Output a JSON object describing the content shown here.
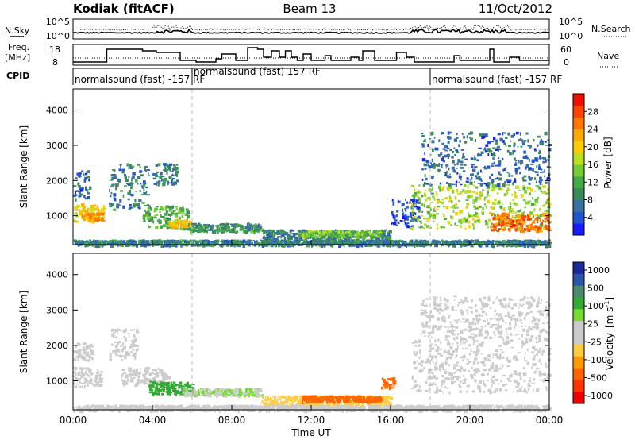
{
  "header": {
    "station": "Kodiak (fitACF)",
    "beam": "Beam 13",
    "date": "11/Oct/2012"
  },
  "chart_data": [
    {
      "type": "line",
      "name": "noise",
      "left_label": "N.Sky",
      "right_label": "N.Search",
      "y_ticks_left": [
        "10^5",
        "10^0"
      ],
      "y_ticks_right": [
        "10^5",
        "10^0"
      ]
    },
    {
      "type": "line",
      "name": "frequency",
      "left_label": "Freq.",
      "left_unit": "[MHz]",
      "right_label": "Nave",
      "y_ticks_left": [
        "18",
        "8"
      ],
      "y_ticks_right": [
        "60",
        "0"
      ],
      "freq_steps": [
        {
          "t": 0.0,
          "f": 8
        },
        {
          "t": 1.7,
          "f": 16
        },
        {
          "t": 3.5,
          "f": 15
        },
        {
          "t": 4.2,
          "f": 14
        },
        {
          "t": 5.4,
          "f": 9
        },
        {
          "t": 6.2,
          "f": 8
        },
        {
          "t": 7.2,
          "f": 10
        },
        {
          "t": 7.5,
          "f": 13
        },
        {
          "t": 8.2,
          "f": 9
        },
        {
          "t": 8.8,
          "f": 17
        },
        {
          "t": 9.3,
          "f": 16
        },
        {
          "t": 9.6,
          "f": 11
        },
        {
          "t": 10.0,
          "f": 15
        },
        {
          "t": 10.4,
          "f": 11
        },
        {
          "t": 10.7,
          "f": 15
        },
        {
          "t": 11.0,
          "f": 11
        },
        {
          "t": 11.3,
          "f": 9
        },
        {
          "t": 11.6,
          "f": 13
        },
        {
          "t": 12.0,
          "f": 9
        },
        {
          "t": 12.7,
          "f": 12
        },
        {
          "t": 13.0,
          "f": 9
        },
        {
          "t": 14.0,
          "f": 11
        },
        {
          "t": 14.4,
          "f": 9
        },
        {
          "t": 14.6,
          "f": 15
        },
        {
          "t": 15.2,
          "f": 9
        },
        {
          "t": 16.3,
          "f": 14
        },
        {
          "t": 16.8,
          "f": 11
        },
        {
          "t": 17.2,
          "f": 8
        },
        {
          "t": 19.2,
          "f": 12
        },
        {
          "t": 19.5,
          "f": 9
        },
        {
          "t": 21.0,
          "f": 16
        },
        {
          "t": 21.2,
          "f": 8
        },
        {
          "t": 22.0,
          "f": 11
        },
        {
          "t": 22.5,
          "f": 9
        },
        {
          "t": 24.0,
          "f": 9
        }
      ]
    },
    {
      "type": "table",
      "name": "cpid",
      "label": "CPID",
      "segments": [
        {
          "start": 0.0,
          "end": 6.0,
          "text": "normalsound (fast) -157 RF"
        },
        {
          "start": 6.0,
          "end": 18.0,
          "text": "normalsound (fast) 157 RF"
        },
        {
          "start": 18.0,
          "end": 24.0,
          "text": "normalsound (fast) -157 RF"
        }
      ]
    },
    {
      "type": "heatmap",
      "name": "power",
      "ylabel": "Slant Range [km]",
      "ylim": [
        180,
        4600
      ],
      "y_ticks": [
        1000,
        2000,
        3000,
        4000
      ],
      "colorbar": {
        "label": "Power [dB]",
        "ticks": [
          4,
          8,
          12,
          16,
          20,
          24,
          28
        ],
        "range": [
          0,
          32
        ],
        "colors": [
          "#1a1aff",
          "#2255cc",
          "#3a6fa0",
          "#3a8a5a",
          "#44aa44",
          "#77cc33",
          "#bbdd22",
          "#ffcc00",
          "#ffaa00",
          "#ff7700",
          "#ff4400",
          "#ee1100"
        ]
      },
      "regions": [
        {
          "t0": 0.0,
          "t1": 1.6,
          "r0": 850,
          "r1": 1350,
          "value": 20
        },
        {
          "t0": 0.4,
          "t1": 1.4,
          "r0": 900,
          "r1": 1100,
          "value": 24
        },
        {
          "t0": 0.0,
          "t1": 0.8,
          "r0": 1500,
          "r1": 2300,
          "value": 6
        },
        {
          "t0": 1.8,
          "t1": 3.8,
          "r0": 1200,
          "r1": 2500,
          "value": 8
        },
        {
          "t0": 3.5,
          "t1": 5.8,
          "r0": 650,
          "r1": 1300,
          "value": 12
        },
        {
          "t0": 4.8,
          "t1": 6.0,
          "r0": 700,
          "r1": 900,
          "value": 20
        },
        {
          "t0": 4.0,
          "t1": 5.2,
          "r0": 1900,
          "r1": 2500,
          "value": 8
        },
        {
          "t0": 5.8,
          "t1": 9.5,
          "r0": 560,
          "r1": 800,
          "value": 10
        },
        {
          "t0": 9.5,
          "t1": 16.0,
          "r0": 300,
          "r1": 620,
          "value": 8
        },
        {
          "t0": 11.5,
          "t1": 15.5,
          "r0": 420,
          "r1": 600,
          "value": 14
        },
        {
          "t0": 16.0,
          "t1": 17.5,
          "r0": 700,
          "r1": 1500,
          "value": 4
        },
        {
          "t0": 17.0,
          "t1": 24.0,
          "r0": 650,
          "r1": 1900,
          "value": 16
        },
        {
          "t0": 21.0,
          "t1": 24.0,
          "r0": 600,
          "r1": 1100,
          "value": 26
        },
        {
          "t0": 17.5,
          "t1": 24.0,
          "r0": 1900,
          "r1": 3400,
          "value": 6
        },
        {
          "t0": 0.0,
          "t1": 24.0,
          "r0": 180,
          "r1": 330,
          "value": 8
        }
      ]
    },
    {
      "type": "heatmap",
      "name": "velocity",
      "xlabel": "Time UT",
      "ylabel": "Slant Range [km]",
      "ylim": [
        180,
        4600
      ],
      "y_ticks": [
        1000,
        2000,
        3000,
        4000
      ],
      "x_ticks": [
        "00:00",
        "04:00",
        "08:00",
        "12:00",
        "16:00",
        "20:00",
        "00:00"
      ],
      "colorbar": {
        "label": "Velocity",
        "unit": "[m s",
        "unit_exp": "-1",
        "unit_end": "]",
        "ticks": [
          "1000",
          "500",
          "100",
          "25",
          "-25",
          "-100",
          "-500",
          "-1000"
        ],
        "colors": [
          "#1a2a9a",
          "#2a55aa",
          "#4a8a6a",
          "#33aa33",
          "#77dd33",
          "#cccccc",
          "#cccccc",
          "#ffcc44",
          "#ff9900",
          "#ff6600",
          "#ff3300",
          "#ee0000"
        ]
      },
      "regions": [
        {
          "t0": 0.0,
          "t1": 1.4,
          "r0": 850,
          "r1": 1400,
          "value": 0
        },
        {
          "t0": 0.0,
          "t1": 1.0,
          "r0": 1600,
          "r1": 2100,
          "value": 0
        },
        {
          "t0": 1.8,
          "t1": 3.2,
          "r0": 1600,
          "r1": 2500,
          "value": 10
        },
        {
          "t0": 2.4,
          "t1": 4.8,
          "r0": 900,
          "r1": 1400,
          "value": 0
        },
        {
          "t0": 3.8,
          "t1": 6.0,
          "r0": 650,
          "r1": 1000,
          "value": 140
        },
        {
          "t0": 5.5,
          "t1": 9.5,
          "r0": 600,
          "r1": 800,
          "value": 60
        },
        {
          "t0": 9.5,
          "t1": 16.0,
          "r0": 300,
          "r1": 600,
          "value": -30
        },
        {
          "t0": 11.5,
          "t1": 15.5,
          "r0": 430,
          "r1": 600,
          "value": -180
        },
        {
          "t0": 15.5,
          "t1": 16.2,
          "r0": 800,
          "r1": 1100,
          "value": -150
        },
        {
          "t0": 17.0,
          "t1": 24.0,
          "r0": 700,
          "r1": 2200,
          "value": 0
        },
        {
          "t0": 17.5,
          "t1": 24.0,
          "r0": 2200,
          "r1": 3400,
          "value": 15
        },
        {
          "t0": 0.0,
          "t1": 24.0,
          "r0": 180,
          "r1": 330,
          "value": 0
        }
      ]
    }
  ]
}
